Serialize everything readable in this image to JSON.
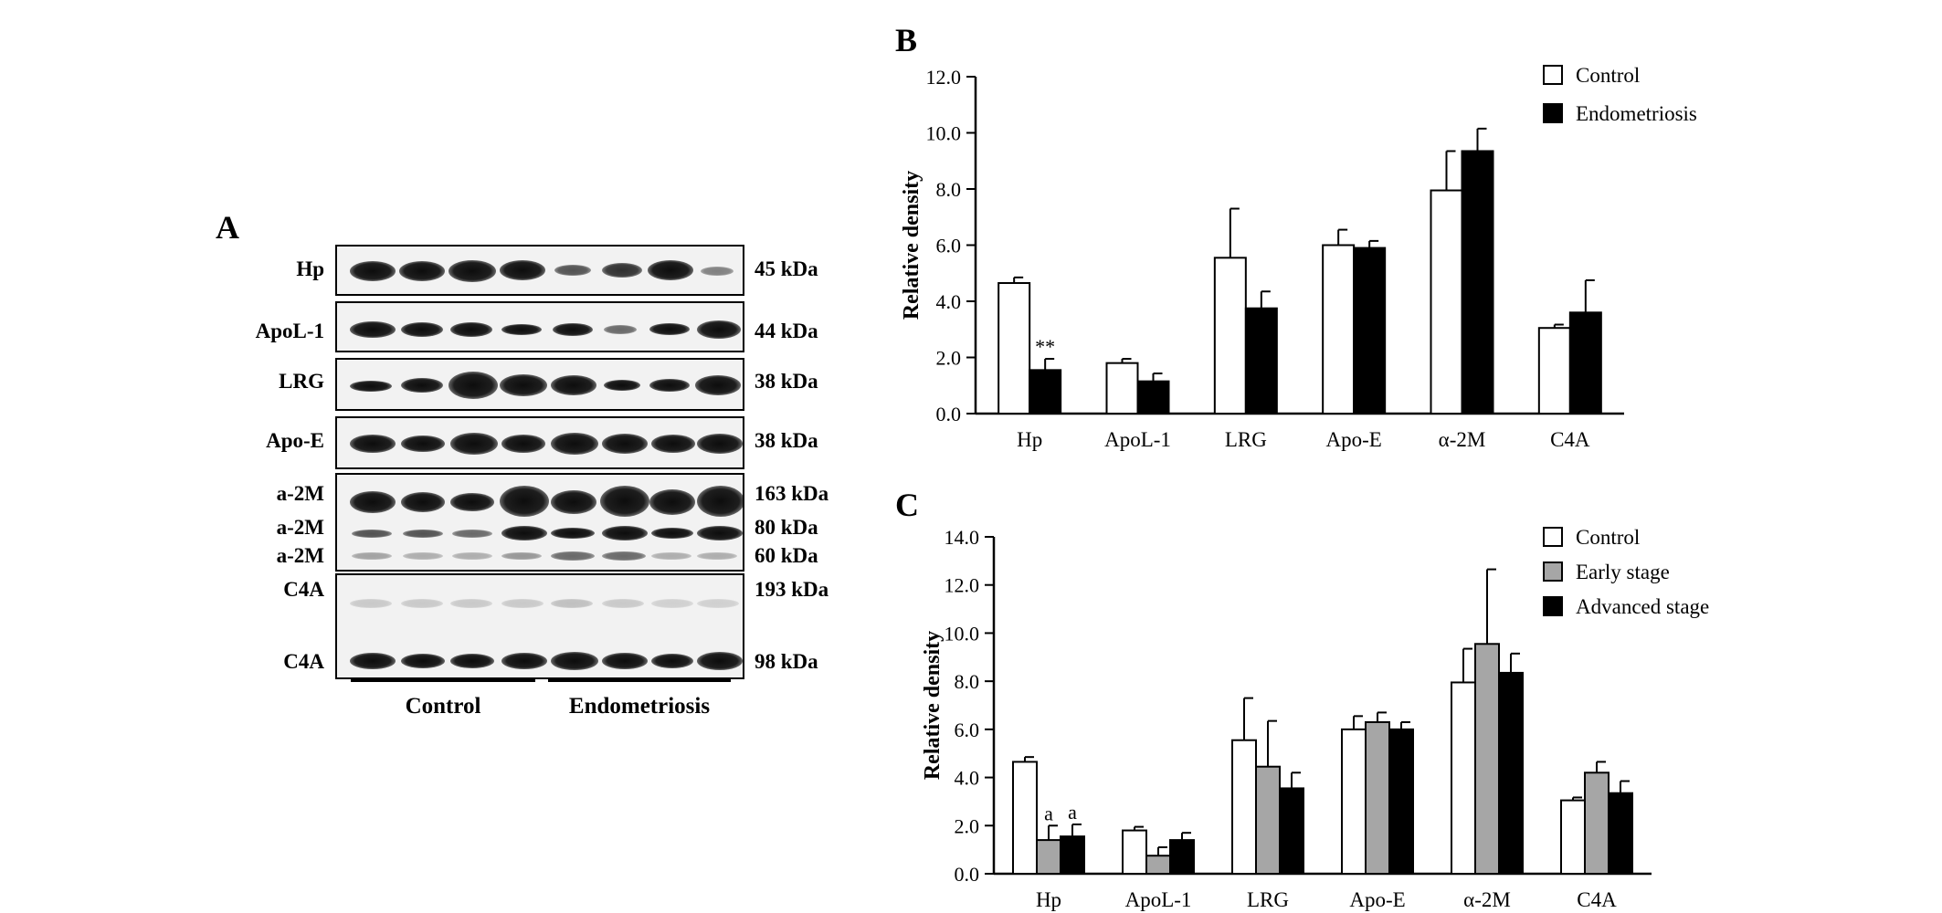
{
  "panel_a": {
    "letter": "A",
    "rows": [
      {
        "label": "Hp",
        "kda": "45 kDa"
      },
      {
        "label": "ApoL-1",
        "kda": "44 kDa"
      },
      {
        "label": "LRG",
        "kda": "38 kDa"
      },
      {
        "label": "Apo-E",
        "kda": "38 kDa"
      },
      {
        "label": "a-2M",
        "kda": "163 kDa"
      },
      {
        "label": "a-2M",
        "kda": "80 kDa"
      },
      {
        "label": "a-2M",
        "kda": "60 kDa"
      },
      {
        "label": "C4A",
        "kda": "193 kDa"
      },
      {
        "label": "C4A",
        "kda": "98 kDa"
      }
    ],
    "groups": [
      "Control",
      "Endometriosis"
    ]
  },
  "chart_data": [
    {
      "panel": "B",
      "type": "bar",
      "title": "",
      "xlabel": "",
      "ylabel": "Relative density",
      "ylim": [
        0,
        12
      ],
      "yticks": [
        "0.0",
        "2.0",
        "4.0",
        "6.0",
        "8.0",
        "10.0",
        "12.0"
      ],
      "categories": [
        "Hp",
        "ApoL-1",
        "LRG",
        "Apo-E",
        "α-2M",
        "C4A"
      ],
      "legend_position": "top-right",
      "series": [
        {
          "name": "Control",
          "color": "#ffffff",
          "values": [
            4.65,
            1.8,
            5.55,
            6.0,
            7.95,
            3.05
          ],
          "errors": [
            0.2,
            0.15,
            1.75,
            0.55,
            1.4,
            0.12
          ]
        },
        {
          "name": "Endometriosis",
          "color": "#000000",
          "values": [
            1.55,
            1.15,
            3.75,
            5.9,
            9.35,
            3.6
          ],
          "errors": [
            0.4,
            0.28,
            0.6,
            0.25,
            0.8,
            1.15
          ]
        }
      ],
      "annotations": [
        {
          "text": "**",
          "category": "Hp",
          "series": "Endometriosis"
        }
      ]
    },
    {
      "panel": "C",
      "type": "bar",
      "title": "",
      "xlabel": "",
      "ylabel": "Relative density",
      "ylim": [
        0,
        14
      ],
      "yticks": [
        "0.0",
        "2.0",
        "4.0",
        "6.0",
        "8.0",
        "10.0",
        "12.0",
        "14.0"
      ],
      "categories": [
        "Hp",
        "ApoL-1",
        "LRG",
        "Apo-E",
        "α-2M",
        "C4A"
      ],
      "legend_position": "top-right",
      "series": [
        {
          "name": "Control",
          "color": "#ffffff",
          "values": [
            4.65,
            1.8,
            5.55,
            6.0,
            7.95,
            3.05
          ],
          "errors": [
            0.2,
            0.15,
            1.75,
            0.55,
            1.4,
            0.12
          ]
        },
        {
          "name": "Early stage",
          "color": "#a6a6a6",
          "values": [
            1.4,
            0.75,
            4.45,
            6.3,
            9.55,
            4.2
          ],
          "errors": [
            0.6,
            0.35,
            1.9,
            0.4,
            3.1,
            0.45
          ]
        },
        {
          "name": "Advanced stage",
          "color": "#000000",
          "values": [
            1.55,
            1.4,
            3.55,
            6.0,
            8.35,
            3.35
          ],
          "errors": [
            0.5,
            0.3,
            0.65,
            0.3,
            0.8,
            0.5
          ]
        }
      ],
      "annotations": [
        {
          "text": "a",
          "category": "Hp",
          "series": "Early stage"
        },
        {
          "text": "a",
          "category": "Hp",
          "series": "Advanced stage"
        }
      ]
    }
  ]
}
